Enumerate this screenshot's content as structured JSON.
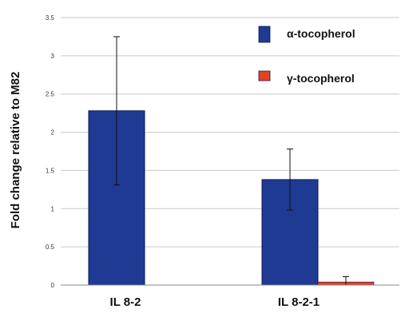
{
  "chart_data": {
    "type": "bar",
    "categories": [
      "IL 8-2",
      "IL 8-2-1"
    ],
    "series": [
      {
        "name": "α-tocopherol",
        "values": [
          2.28,
          1.38
        ],
        "errors": [
          0.97,
          0.4
        ],
        "color": "#1F3A93"
      },
      {
        "name": "γ-tocopherol",
        "values": [
          0.0,
          0.04
        ],
        "errors": [
          0.0,
          0.07
        ],
        "color": "#E8411E"
      }
    ],
    "ylabel": "Fold change relative to M82",
    "xlabel": "",
    "title": "",
    "ylim": [
      0,
      3.5
    ],
    "yticks": [
      "0",
      "0.5",
      "1",
      "1.5",
      "2",
      "2.5",
      "3",
      "3.5"
    ],
    "grid": "horizontal",
    "legend_position": "top-right"
  }
}
